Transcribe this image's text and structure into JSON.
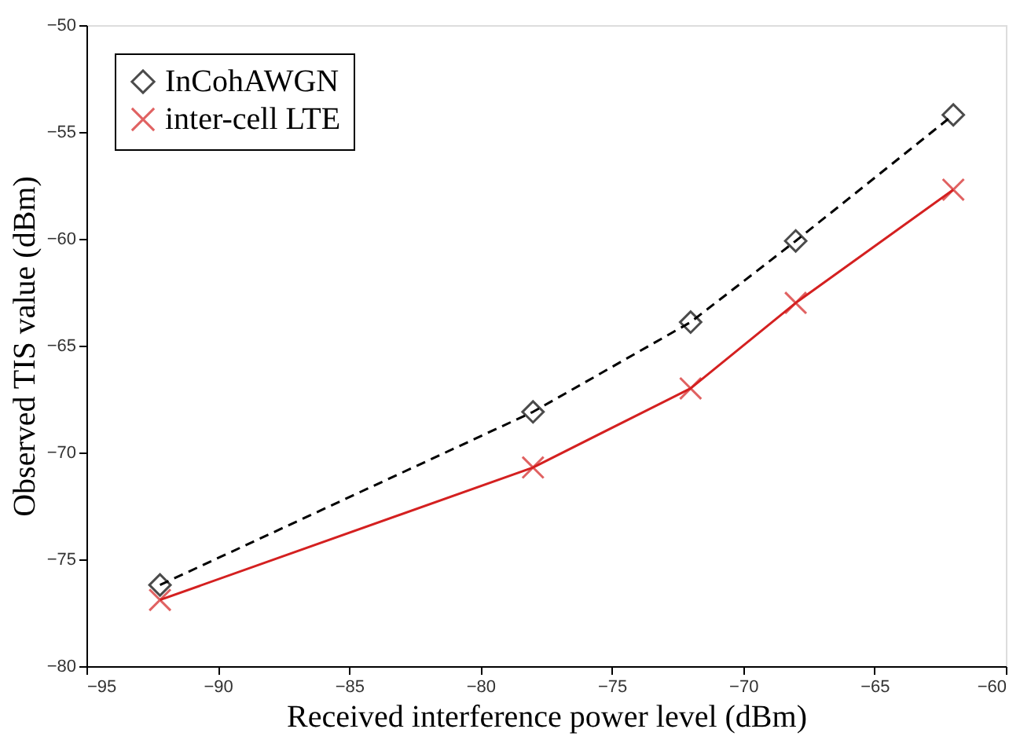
{
  "chart_data": {
    "type": "line",
    "xlabel": "Received interference power level (dBm)",
    "ylabel": "Observed TIS value (dBm)",
    "x": [
      -92.2,
      -78,
      -72,
      -68,
      -62
    ],
    "series": [
      {
        "name": "InCohAWGN",
        "color": "#000000",
        "marker": "diamond",
        "line_style": "dashed",
        "values": [
          -76.2,
          -68.1,
          -63.9,
          -60.1,
          -54.2
        ]
      },
      {
        "name": "inter-cell LTE",
        "color": "#d42020",
        "marker": "cross",
        "line_style": "solid",
        "values": [
          -76.9,
          -70.7,
          -67.0,
          -63.0,
          -57.7
        ]
      }
    ],
    "xlim": [
      -95,
      -60
    ],
    "xticks": [
      -95,
      -90,
      -85,
      -80,
      -75,
      -70,
      -65,
      -60
    ],
    "ylim": [
      -80,
      -50
    ],
    "yticks": [
      -80,
      -75,
      -70,
      -65,
      -60,
      -55,
      -50
    ],
    "grid": false,
    "legend": "top left"
  }
}
